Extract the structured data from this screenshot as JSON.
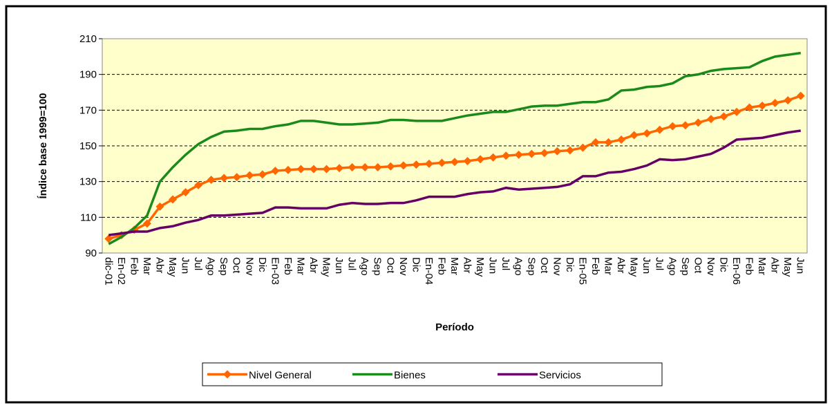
{
  "chart_data": {
    "type": "line",
    "y_label": "Índice base 1999=100",
    "x_label": "Período",
    "categories": [
      "dic-01",
      "En-02",
      "Feb",
      "Mar",
      "Abr",
      "May",
      "Jun",
      "Jul",
      "Ago",
      "Sep",
      "Oct",
      "Nov",
      "Dic",
      "En-03",
      "Feb",
      "Mar",
      "Abr",
      "May",
      "Jun",
      "Jul",
      "Ago",
      "Sep",
      "Oct",
      "Nov",
      "Dic",
      "En-04",
      "Feb",
      "Mar",
      "Abr",
      "May",
      "Jun",
      "Jul",
      "Ago",
      "Sep",
      "Oct",
      "Nov",
      "Dic",
      "En-05",
      "Feb",
      "Mar",
      "Abr",
      "May",
      "Jun",
      "Jul",
      "Ago",
      "Sep",
      "Oct",
      "Nov",
      "Dic",
      "En-06",
      "Feb",
      "Mar",
      "Abr",
      "May",
      "Jun"
    ],
    "series": [
      {
        "name": "Nivel General",
        "color": "#ff6600",
        "marker": "diamond",
        "values": [
          98,
          100,
          103,
          106.5,
          116,
          120,
          124,
          128,
          131,
          132,
          132.5,
          133.5,
          134,
          136,
          136.5,
          137,
          137,
          137,
          137.5,
          138,
          138,
          138,
          138.5,
          139,
          139.5,
          140,
          140.5,
          141,
          141.5,
          142.5,
          143.5,
          144.5,
          145,
          145.5,
          146,
          147,
          147.5,
          149,
          152,
          152,
          153.5,
          156,
          157,
          159,
          161,
          161.5,
          163,
          165,
          166.5,
          169,
          171.5,
          172.5,
          174,
          175.5,
          178
        ]
      },
      {
        "name": "Bienes",
        "color": "#1a8a1a",
        "values": [
          95,
          99,
          104,
          111,
          130,
          138,
          145,
          151,
          155,
          158,
          158.5,
          159.5,
          159.5,
          161,
          162,
          164,
          164,
          163,
          162,
          162,
          162.5,
          163,
          164.5,
          164.5,
          164,
          164,
          164,
          165.5,
          167,
          168,
          169,
          169,
          170.5,
          172,
          172.5,
          172.5,
          173.5,
          174.5,
          174.5,
          176,
          181,
          181.5,
          183,
          183.5,
          185,
          189,
          190,
          192,
          193,
          193.5,
          194,
          197.5,
          200,
          201,
          202
        ]
      },
      {
        "name": "Servicios",
        "color": "#660066",
        "values": [
          100,
          101,
          102,
          102,
          104,
          105,
          107,
          108.5,
          111,
          111,
          111.5,
          112,
          112.5,
          115.5,
          115.5,
          115,
          115,
          115,
          117,
          118,
          117.5,
          117.5,
          118,
          118,
          119.5,
          121.5,
          121.5,
          121.5,
          123,
          124,
          124.5,
          126.5,
          125.5,
          126,
          126.5,
          127,
          128.5,
          133,
          133,
          135,
          135.5,
          137,
          139,
          142.5,
          142,
          142.5,
          144,
          145.5,
          149,
          153.5,
          154,
          154.5,
          156,
          157.5,
          158.5
        ]
      }
    ],
    "ylim": [
      90,
      210
    ],
    "yticks": [
      90,
      110,
      130,
      150,
      170,
      190,
      210
    ],
    "grid": true
  }
}
